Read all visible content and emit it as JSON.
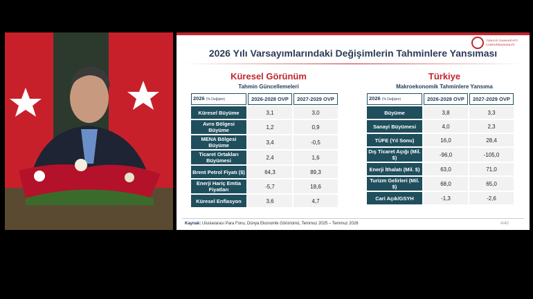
{
  "slide": {
    "logo": [
      "TÜRKİYE CUMHURİYETİ",
      "CUMHURBAŞKANLIĞI"
    ],
    "title": "2026 Yılı Varsayımlarındaki Değişimlerin Tahminlere Yansıması",
    "left": {
      "heading": "Küresel Görünüm",
      "subheading": "Tahmin Güncellemeleri",
      "header": {
        "year": "2026",
        "unit": "(% Değişim)",
        "col1": "2026-2028 OVP",
        "col2": "2027-2029 OVP"
      },
      "rows": [
        [
          "Küresel Büyüme",
          "3,1",
          "3,0"
        ],
        [
          "Avro Bölgesi Büyüme",
          "1,2",
          "0,9"
        ],
        [
          "MENA Bölgesi Büyüme",
          "3,4",
          "-0,5"
        ],
        [
          "Ticaret Ortakları Büyümesi",
          "2,4",
          "1,6"
        ],
        [
          "Brent Petrol Fiyatı ($)",
          "64,3",
          "89,3"
        ],
        [
          "Enerji Hariç Emtia Fiyatları",
          "-5,7",
          "18,6"
        ],
        [
          "Küresel Enflasyon",
          "3,6",
          "4,7"
        ]
      ]
    },
    "right": {
      "heading": "Türkiye",
      "subheading": "Makroekonomik Tahminlere Yansıma",
      "header": {
        "year": "2026",
        "unit": "(% Değişim)",
        "col1": "2026-2028 OVP",
        "col2": "2027-2029 OVP"
      },
      "rows": [
        [
          "Büyüme",
          "3,8",
          "3,3"
        ],
        [
          "Sanayi Büyümesi",
          "4,0",
          "2,3"
        ],
        [
          "TÜFE (Yıl Sonu)",
          "16,0",
          "28,4"
        ],
        [
          "Dış Ticaret Açığı (Mil. $)",
          "-96,0",
          "-105,0"
        ],
        [
          "Enerji İthalatı (Mil. $)",
          "63,0",
          "71,0"
        ],
        [
          "Turizm Gelirleri (Mil. $)",
          "68,0",
          "65,0"
        ],
        [
          "Cari Açık/GSYH",
          "-1,3",
          "-2,6"
        ]
      ]
    },
    "source_label": "Kaynak:",
    "source": "Uluslararası Para Fonu, Dünya Ekonomik Görünümü, Temmuz 2025 – Temmuz 2026",
    "page": "4/40"
  }
}
